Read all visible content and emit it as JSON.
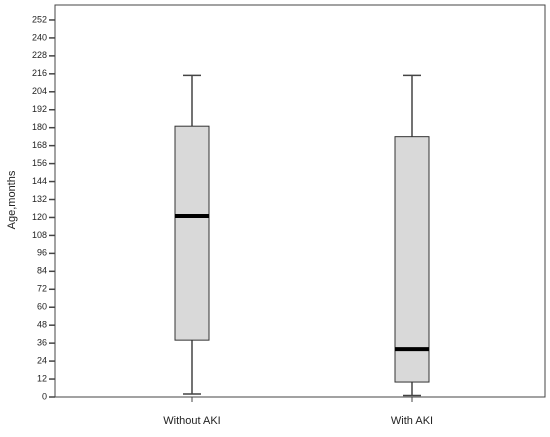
{
  "chart_data": {
    "type": "box",
    "y_label": "Age,months",
    "categories": [
      "Without AKI",
      "With AKI"
    ],
    "boxes": [
      {
        "min": 2,
        "q1": 38,
        "median": 121,
        "q3": 181,
        "max": 215
      },
      {
        "min": 1,
        "q1": 10,
        "median": 32,
        "q3": 174,
        "max": 215
      }
    ],
    "color": "#d9d9d9",
    "ylim": [
      0,
      262
    ],
    "yticks": [
      0,
      12,
      24,
      36,
      48,
      60,
      72,
      84,
      96,
      108,
      120,
      132,
      144,
      156,
      168,
      180,
      192,
      204,
      216,
      228,
      240,
      252
    ]
  }
}
